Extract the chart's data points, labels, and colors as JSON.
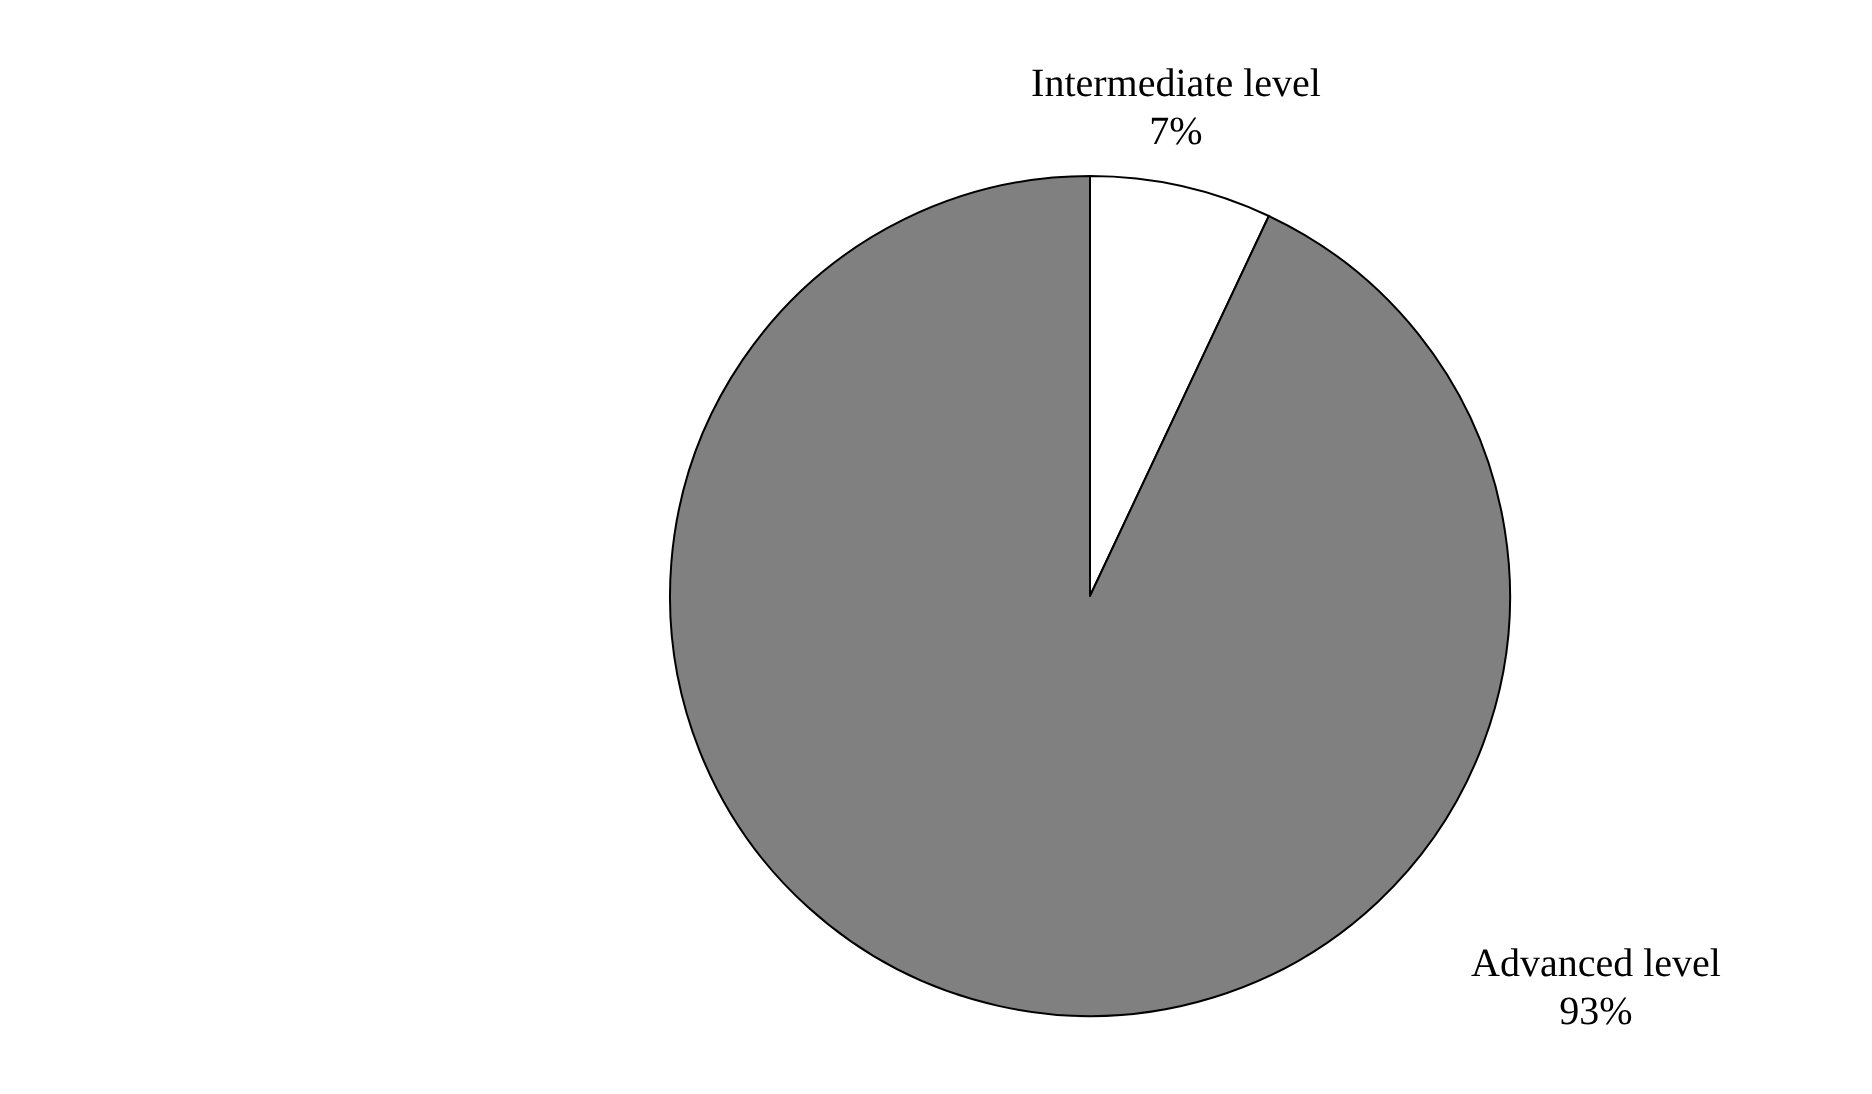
{
  "chart_data": {
    "type": "pie",
    "categories": [
      "Intermediate level",
      "Advanced level"
    ],
    "values": [
      7,
      93
    ],
    "colors": [
      "#ffffff",
      "#808080"
    ],
    "value_labels": [
      "7%",
      "93%"
    ]
  }
}
